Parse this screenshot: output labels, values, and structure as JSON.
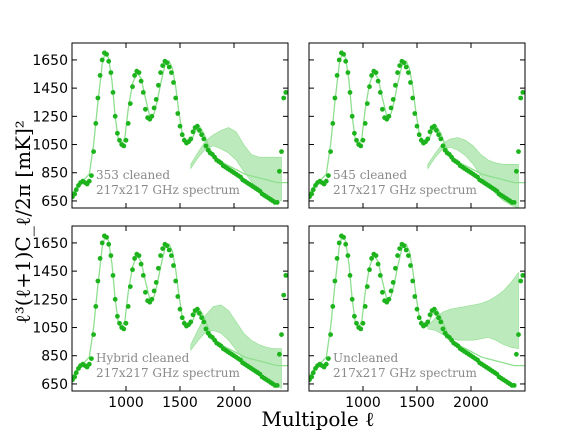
{
  "chart_data": {
    "type": "scatter",
    "xlabel": "Multipole ℓ",
    "ylabel": "ℓ³(ℓ+1)C_ℓ/2π [mK]²",
    "xlim": [
      500,
      2500
    ],
    "ylim": [
      600,
      1770
    ],
    "xticks": [
      1000,
      1500,
      2000
    ],
    "xtick_labels": [
      "1000",
      "1500",
      "2000"
    ],
    "yticks": [
      650,
      850,
      1050,
      1250,
      1450,
      1650
    ],
    "ytick_labels": [
      "650",
      "850",
      "1050",
      "1250",
      "1450",
      "1650"
    ],
    "grid": false,
    "colors": {
      "points": "#1db31d",
      "curve": "#8fdf8f",
      "band": "#a6e3a6",
      "annotation": "#8a8a8a"
    },
    "model_curve": {
      "x": [
        500,
        560,
        610,
        660,
        700,
        740,
        780,
        810,
        840,
        870,
        900,
        930,
        960,
        990,
        1020,
        1060,
        1100,
        1140,
        1180,
        1220,
        1260,
        1290,
        1320,
        1360,
        1400,
        1430,
        1460,
        1490,
        1520,
        1560,
        1600,
        1640,
        1680,
        1720,
        1760,
        1800,
        1850,
        1900,
        1950,
        2000,
        2050,
        2100,
        2150,
        2200,
        2250,
        2300,
        2350,
        2400,
        2450,
        2500
      ],
      "y": [
        700,
        770,
        800,
        840,
        1050,
        1350,
        1620,
        1710,
        1660,
        1500,
        1250,
        1080,
        1050,
        1100,
        1300,
        1480,
        1560,
        1520,
        1380,
        1250,
        1270,
        1360,
        1480,
        1610,
        1640,
        1590,
        1460,
        1280,
        1130,
        1060,
        1070,
        1140,
        1180,
        1130,
        1050,
        980,
        940,
        920,
        900,
        880,
        860,
        840,
        830,
        820,
        810,
        800,
        790,
        780,
        780,
        780
      ]
    },
    "panels": [
      {
        "annotation_line1": "353 cleaned",
        "annotation_line2": "217x217 GHz spectrum",
        "band_upper": [
          910,
          1000,
          1080,
          1120,
          1150,
          1170,
          1140,
          1050,
          980,
          960,
          960,
          960,
          960
        ],
        "band_lower": [
          880,
          960,
          1020,
          1040,
          1020,
          990,
          940,
          860,
          790,
          720,
          680,
          660,
          650
        ],
        "x": [
          505,
          525,
          540,
          560,
          580,
          600,
          620,
          640,
          660,
          680,
          700,
          720,
          740,
          760,
          780,
          800,
          820,
          840,
          860,
          880,
          900,
          920,
          940,
          960,
          980,
          1000,
          1020,
          1040,
          1060,
          1080,
          1100,
          1120,
          1140,
          1160,
          1180,
          1200,
          1220,
          1240,
          1260,
          1280,
          1300,
          1320,
          1340,
          1360,
          1380,
          1400,
          1420,
          1440,
          1460,
          1480,
          1500,
          1520,
          1540,
          1560,
          1580,
          1600,
          1620,
          1640,
          1660,
          1680,
          1700,
          1720,
          1740,
          1760,
          1780,
          1800,
          1820,
          1840,
          1860,
          1880,
          1900,
          1920,
          1940,
          1960,
          1980,
          2000,
          2020,
          2040,
          2060,
          2080,
          2100,
          2120,
          2140,
          2160,
          2180,
          2200,
          2220,
          2240,
          2260,
          2280,
          2300,
          2320,
          2340,
          2360,
          2380,
          2400,
          2420,
          2440,
          2460,
          2480
        ],
        "y": [
          680,
          700,
          730,
          760,
          780,
          790,
          780,
          770,
          790,
          830,
          1000,
          1200,
          1380,
          1540,
          1650,
          1700,
          1690,
          1640,
          1560,
          1420,
          1250,
          1130,
          1080,
          1050,
          1040,
          1080,
          1200,
          1340,
          1460,
          1540,
          1570,
          1560,
          1500,
          1420,
          1300,
          1240,
          1230,
          1250,
          1310,
          1370,
          1470,
          1560,
          1610,
          1640,
          1630,
          1600,
          1560,
          1490,
          1380,
          1270,
          1180,
          1120,
          1080,
          1060,
          1070,
          1090,
          1140,
          1170,
          1180,
          1150,
          1120,
          1090,
          1040,
          1010,
          990,
          980,
          960,
          940,
          930,
          920,
          900,
          890,
          880,
          870,
          860,
          850,
          840,
          830,
          820,
          800,
          790,
          780,
          770,
          760,
          750,
          740,
          730,
          720,
          700,
          690,
          680,
          670,
          660,
          650,
          640,
          640,
          860,
          1000,
          1380,
          1420
        ]
      },
      {
        "annotation_line1": "545 cleaned",
        "annotation_line2": "217x217 GHz spectrum",
        "band_upper": [
          910,
          990,
          1060,
          1090,
          1100,
          1080,
          1040,
          980,
          940,
          920,
          910,
          910,
          910
        ],
        "band_lower": [
          880,
          960,
          1020,
          1030,
          1010,
          970,
          910,
          830,
          760,
          700,
          650,
          620,
          600
        ],
        "x": [
          505,
          525,
          540,
          560,
          580,
          600,
          620,
          640,
          660,
          680,
          700,
          720,
          740,
          760,
          780,
          800,
          820,
          840,
          860,
          880,
          900,
          920,
          940,
          960,
          980,
          1000,
          1020,
          1040,
          1060,
          1080,
          1100,
          1120,
          1140,
          1160,
          1180,
          1200,
          1220,
          1240,
          1260,
          1280,
          1300,
          1320,
          1340,
          1360,
          1380,
          1400,
          1420,
          1440,
          1460,
          1480,
          1500,
          1520,
          1540,
          1560,
          1580,
          1600,
          1620,
          1640,
          1660,
          1680,
          1700,
          1720,
          1740,
          1760,
          1780,
          1800,
          1820,
          1840,
          1860,
          1880,
          1900,
          1920,
          1940,
          1960,
          1980,
          2000,
          2020,
          2040,
          2060,
          2080,
          2100,
          2120,
          2140,
          2160,
          2180,
          2200,
          2220,
          2240,
          2260,
          2280,
          2300,
          2320,
          2340,
          2360,
          2380,
          2400,
          2420,
          2440,
          2460,
          2480
        ],
        "y": [
          680,
          700,
          730,
          760,
          780,
          790,
          780,
          770,
          790,
          830,
          1000,
          1200,
          1380,
          1540,
          1650,
          1700,
          1690,
          1640,
          1560,
          1420,
          1250,
          1130,
          1080,
          1050,
          1040,
          1080,
          1200,
          1340,
          1460,
          1540,
          1570,
          1560,
          1500,
          1420,
          1300,
          1240,
          1230,
          1250,
          1310,
          1370,
          1470,
          1560,
          1610,
          1640,
          1630,
          1600,
          1560,
          1490,
          1380,
          1270,
          1180,
          1120,
          1080,
          1060,
          1070,
          1090,
          1140,
          1170,
          1180,
          1150,
          1120,
          1090,
          1040,
          1010,
          990,
          980,
          960,
          940,
          930,
          920,
          900,
          890,
          880,
          870,
          860,
          850,
          840,
          830,
          820,
          800,
          790,
          780,
          770,
          760,
          750,
          740,
          730,
          720,
          700,
          690,
          680,
          670,
          660,
          650,
          640,
          640,
          860,
          1000,
          1380,
          1420
        ]
      },
      {
        "annotation_line1": "Hybrid cleaned",
        "annotation_line2": "217x217 GHz spectrum",
        "band_upper": [
          930,
          1040,
          1140,
          1200,
          1210,
          1170,
          1090,
          1010,
          960,
          930,
          910,
          900,
          900
        ],
        "band_lower": [
          890,
          960,
          1020,
          1030,
          1010,
          960,
          890,
          820,
          760,
          710,
          670,
          640,
          620
        ],
        "x": [
          505,
          525,
          540,
          560,
          580,
          600,
          620,
          640,
          660,
          680,
          700,
          720,
          740,
          760,
          780,
          800,
          820,
          840,
          860,
          880,
          900,
          920,
          940,
          960,
          980,
          1000,
          1020,
          1040,
          1060,
          1080,
          1100,
          1120,
          1140,
          1160,
          1180,
          1200,
          1220,
          1240,
          1260,
          1280,
          1300,
          1320,
          1340,
          1360,
          1380,
          1400,
          1420,
          1440,
          1460,
          1480,
          1500,
          1520,
          1540,
          1560,
          1580,
          1600,
          1620,
          1640,
          1660,
          1680,
          1700,
          1720,
          1740,
          1760,
          1780,
          1800,
          1820,
          1840,
          1860,
          1880,
          1900,
          1920,
          1940,
          1960,
          1980,
          2000,
          2020,
          2040,
          2060,
          2080,
          2100,
          2120,
          2140,
          2160,
          2180,
          2200,
          2220,
          2240,
          2260,
          2280,
          2300,
          2320,
          2340,
          2360,
          2380,
          2400,
          2420,
          2440,
          2460,
          2480
        ],
        "y": [
          680,
          700,
          730,
          760,
          780,
          790,
          780,
          770,
          790,
          830,
          1000,
          1200,
          1380,
          1540,
          1650,
          1700,
          1690,
          1640,
          1560,
          1420,
          1250,
          1130,
          1080,
          1050,
          1040,
          1080,
          1200,
          1340,
          1460,
          1540,
          1570,
          1560,
          1500,
          1420,
          1300,
          1240,
          1230,
          1250,
          1310,
          1370,
          1470,
          1560,
          1610,
          1640,
          1630,
          1600,
          1560,
          1490,
          1380,
          1270,
          1180,
          1120,
          1080,
          1060,
          1070,
          1090,
          1140,
          1170,
          1180,
          1150,
          1120,
          1090,
          1040,
          1010,
          990,
          980,
          960,
          940,
          930,
          920,
          900,
          890,
          880,
          870,
          860,
          850,
          840,
          830,
          820,
          800,
          790,
          780,
          770,
          760,
          750,
          740,
          730,
          720,
          700,
          690,
          680,
          670,
          660,
          650,
          640,
          640,
          860,
          1000,
          1280,
          1420
        ]
      },
      {
        "annotation_line1": "Uncleaned",
        "annotation_line2": "217x217 GHz spectrum",
        "band_upper": [
          1060,
          1120,
          1160,
          1180,
          1190,
          1200,
          1210,
          1220,
          1240,
          1270,
          1310,
          1370,
          1440
        ],
        "band_lower": [
          1040,
          1030,
          1000,
          970,
          960,
          960,
          960,
          970,
          980,
          960,
          930,
          910,
          900
        ],
        "x": [
          505,
          525,
          540,
          560,
          580,
          600,
          620,
          640,
          660,
          680,
          700,
          720,
          740,
          760,
          780,
          800,
          820,
          840,
          860,
          880,
          900,
          920,
          940,
          960,
          980,
          1000,
          1020,
          1040,
          1060,
          1080,
          1100,
          1120,
          1140,
          1160,
          1180,
          1200,
          1220,
          1240,
          1260,
          1280,
          1300,
          1320,
          1340,
          1360,
          1380,
          1400,
          1420,
          1440,
          1460,
          1480,
          1500,
          1520,
          1540,
          1560,
          1580,
          1600,
          1620,
          1640,
          1660,
          1680,
          1700,
          1720,
          1740,
          1760,
          1780,
          1800,
          1820,
          1840,
          1860,
          1880,
          1900,
          1920,
          1940,
          1960,
          1980,
          2000,
          2020,
          2040,
          2060,
          2080,
          2100,
          2120,
          2140,
          2160,
          2180,
          2200,
          2220,
          2240,
          2260,
          2280,
          2300,
          2320,
          2340,
          2360,
          2380,
          2400,
          2420,
          2440,
          2460,
          2480
        ],
        "y": [
          680,
          700,
          730,
          760,
          780,
          790,
          780,
          770,
          790,
          830,
          1000,
          1200,
          1380,
          1540,
          1650,
          1700,
          1690,
          1640,
          1560,
          1420,
          1250,
          1130,
          1080,
          1050,
          1040,
          1080,
          1200,
          1340,
          1460,
          1540,
          1570,
          1560,
          1500,
          1420,
          1300,
          1240,
          1230,
          1250,
          1310,
          1370,
          1470,
          1560,
          1610,
          1640,
          1630,
          1600,
          1560,
          1490,
          1380,
          1270,
          1180,
          1120,
          1080,
          1060,
          1070,
          1090,
          1140,
          1170,
          1180,
          1150,
          1120,
          1090,
          1040,
          1010,
          990,
          980,
          960,
          940,
          930,
          920,
          900,
          890,
          880,
          870,
          860,
          850,
          840,
          830,
          820,
          800,
          790,
          780,
          770,
          760,
          750,
          740,
          730,
          720,
          700,
          690,
          680,
          670,
          660,
          650,
          640,
          640,
          860,
          1000,
          1380,
          1420
        ]
      }
    ]
  }
}
